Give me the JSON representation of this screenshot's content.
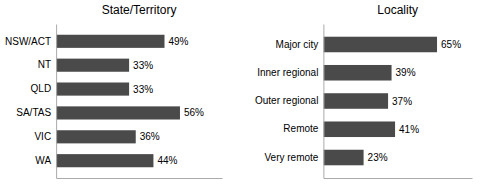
{
  "chart_data": [
    {
      "type": "bar",
      "orientation": "horizontal",
      "title": "State/Territory",
      "categories": [
        "NSW/ACT",
        "NT",
        "QLD",
        "SA/TAS",
        "VIC",
        "WA"
      ],
      "values": [
        49,
        33,
        33,
        56,
        36,
        44
      ],
      "value_labels": [
        "49%",
        "33%",
        "33%",
        "56%",
        "36%",
        "44%"
      ],
      "color": "#4a4a4a",
      "xlim": [
        0,
        75
      ],
      "xticks": [],
      "data_labels": true,
      "tick_labels": "y"
    },
    {
      "type": "bar",
      "orientation": "horizontal",
      "title": "Locality",
      "categories": [
        "Major city",
        "Inner regional",
        "Outer regional",
        "Remote",
        "Very remote"
      ],
      "values": [
        65,
        39,
        37,
        41,
        23
      ],
      "value_labels": [
        "65%",
        "39%",
        "37%",
        "41%",
        "23%"
      ],
      "color": "#4a4a4a",
      "xlim": [
        0,
        85
      ],
      "xticks": [],
      "data_labels": true,
      "tick_labels": "y"
    }
  ]
}
